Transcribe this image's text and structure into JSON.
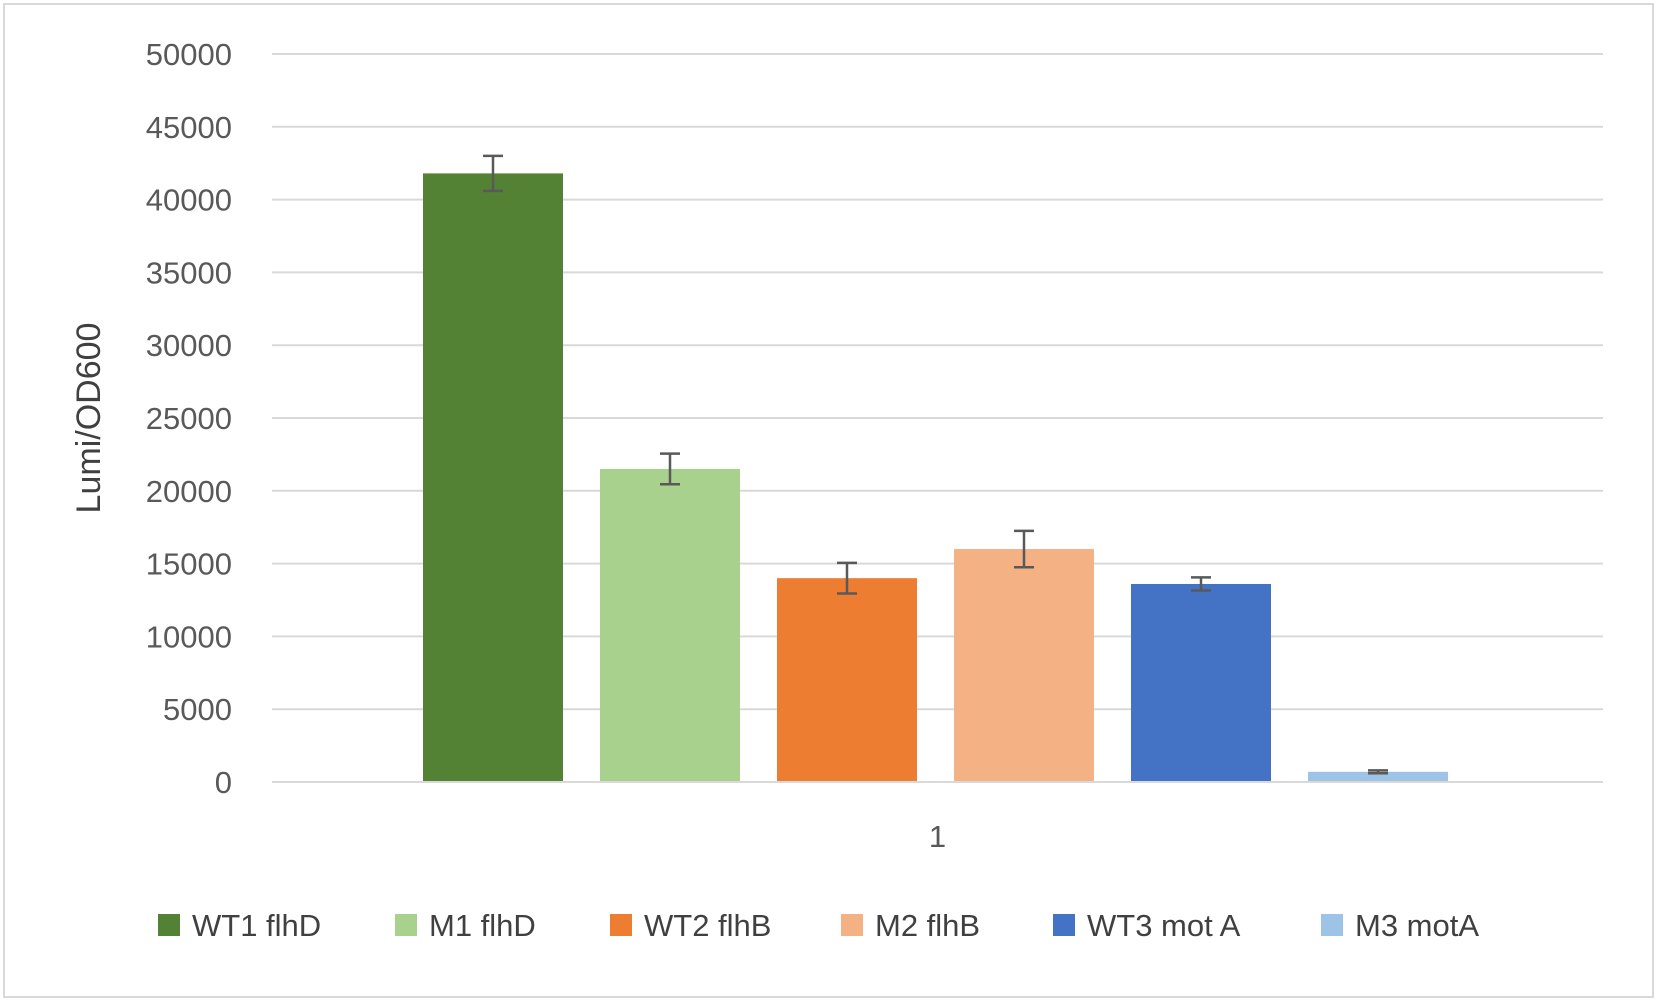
{
  "chart_data": {
    "type": "bar",
    "title": "",
    "xlabel": "",
    "ylabel": "Lumi/OD600",
    "categories": [
      "1"
    ],
    "ylim": [
      0,
      50000
    ],
    "yticks": [
      0,
      5000,
      10000,
      15000,
      20000,
      25000,
      30000,
      35000,
      40000,
      45000,
      50000
    ],
    "grid": true,
    "legend_position": "bottom",
    "series": [
      {
        "name": "WT1 flhD",
        "values": [
          41800
        ],
        "error": [
          1200
        ],
        "color": "#548235"
      },
      {
        "name": "M1 flhD",
        "values": [
          21500
        ],
        "error": [
          1050
        ],
        "color": "#a9d18e"
      },
      {
        "name": "WT2 flhB",
        "values": [
          14000
        ],
        "error": [
          1050
        ],
        "color": "#ed7d31"
      },
      {
        "name": "M2 flhB",
        "values": [
          16000
        ],
        "error": [
          1250
        ],
        "color": "#f4b183"
      },
      {
        "name": "WT3 mot A",
        "values": [
          13600
        ],
        "error": [
          450
        ],
        "color": "#4472c4"
      },
      {
        "name": "M3 motA",
        "values": [
          700
        ],
        "error": [
          100
        ],
        "color": "#9dc3e6"
      }
    ]
  }
}
